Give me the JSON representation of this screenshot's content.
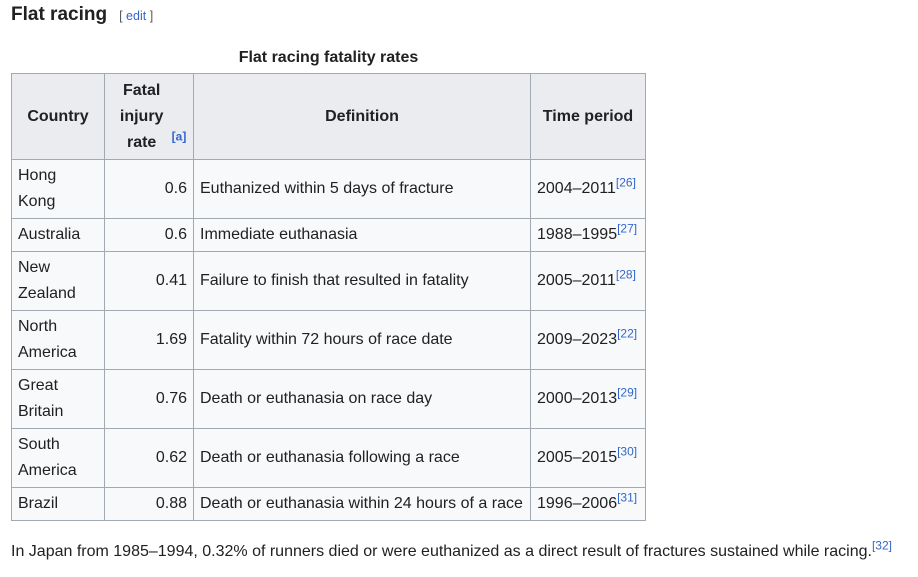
{
  "section": {
    "title": "Flat racing",
    "edit_open": "[",
    "edit_label": "edit",
    "edit_close": "]"
  },
  "table": {
    "caption": "Flat racing fatality rates",
    "headers": {
      "country": "Country",
      "rate": "Fatal injury rate",
      "rate_note": "[a]",
      "definition": "Definition",
      "period": "Time period"
    },
    "rows": [
      {
        "country": "Hong Kong",
        "rate": "0.6",
        "definition": "Euthanized within 5 days of fracture",
        "period": "2004–2011",
        "ref": "[26]"
      },
      {
        "country": "Australia",
        "rate": "0.6",
        "definition": "Immediate euthanasia",
        "period": "1988–1995",
        "ref": "[27]"
      },
      {
        "country": "New Zealand",
        "rate": "0.41",
        "definition": "Failure to finish that resulted in fatality",
        "period": "2005–2011",
        "ref": "[28]"
      },
      {
        "country": "North America",
        "rate": "1.69",
        "definition": "Fatality within 72 hours of race date",
        "period": "2009–2023",
        "ref": "[22]"
      },
      {
        "country": "Great Britain",
        "rate": "0.76",
        "definition": "Death or euthanasia on race day",
        "period": "2000–2013",
        "ref": "[29]"
      },
      {
        "country": "South America",
        "rate": "0.62",
        "definition": "Death or euthanasia following a race",
        "period": "2005–2015",
        "ref": "[30]"
      },
      {
        "country": "Brazil",
        "rate": "0.88",
        "definition": "Death or euthanasia within 24 hours of a race",
        "period": "1996–2006",
        "ref": "[31]"
      }
    ]
  },
  "paragraph": {
    "text": "In Japan from 1985–1994, 0.32% of runners died or were euthanized as a direct result of fractures sustained while racing.",
    "ref": "[32]"
  }
}
